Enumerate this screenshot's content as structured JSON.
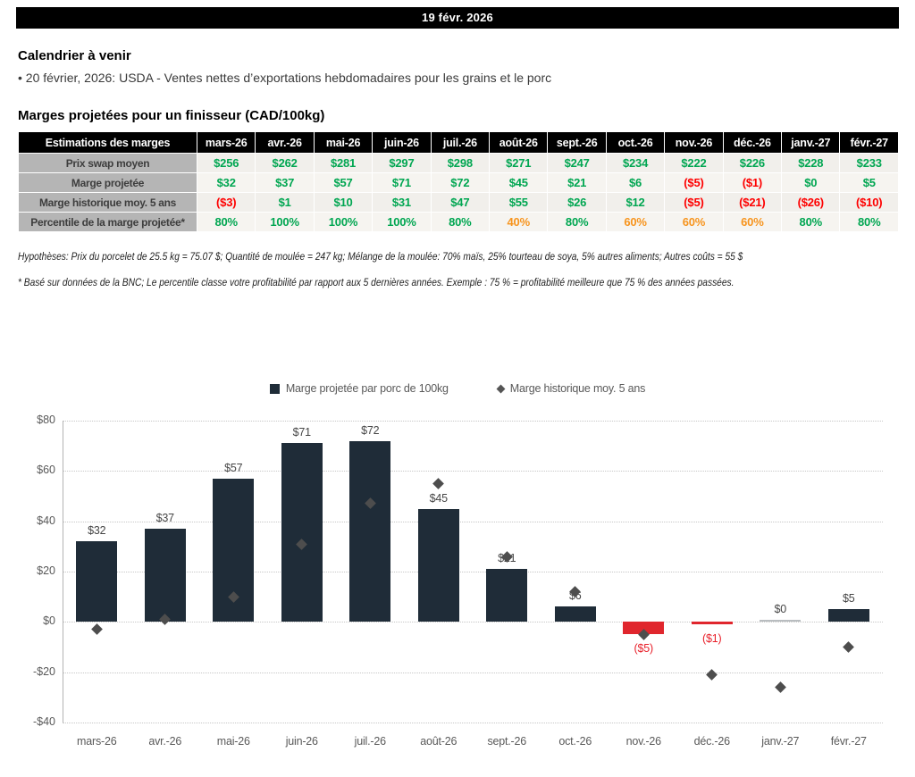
{
  "header": {
    "date": "19 févr. 2026"
  },
  "calendar": {
    "title": "Calendrier à venir",
    "items": [
      "• 20 février, 2026: USDA - Ventes nettes d’exportations hebdomadaires pour les grains et le porc"
    ]
  },
  "margins_section": {
    "title": "Marges projetées pour un finisseur (CAD/100kg)"
  },
  "table": {
    "header": [
      "Estimations des marges",
      "mars-26",
      "avr.-26",
      "mai-26",
      "juin-26",
      "juil.-26",
      "août-26",
      "sept.-26",
      "oct.-26",
      "nov.-26",
      "déc.-26",
      "janv.-27",
      "févr.-27"
    ],
    "rows": [
      {
        "label": "Prix swap moyen",
        "values": [
          "$256",
          "$262",
          "$281",
          "$297",
          "$298",
          "$271",
          "$247",
          "$234",
          "$222",
          "$226",
          "$228",
          "$233"
        ],
        "colors": [
          "g",
          "g",
          "g",
          "g",
          "g",
          "g",
          "g",
          "g",
          "g",
          "g",
          "g",
          "g"
        ]
      },
      {
        "label": "Marge projetée",
        "values": [
          "$32",
          "$37",
          "$57",
          "$71",
          "$72",
          "$45",
          "$21",
          "$6",
          "($5)",
          "($1)",
          "$0",
          "$5"
        ],
        "colors": [
          "g",
          "g",
          "g",
          "g",
          "g",
          "g",
          "g",
          "g",
          "r",
          "r",
          "g",
          "g"
        ]
      },
      {
        "label": "Marge historique moy. 5 ans",
        "values": [
          "($3)",
          "$1",
          "$10",
          "$31",
          "$47",
          "$55",
          "$26",
          "$12",
          "($5)",
          "($21)",
          "($26)",
          "($10)"
        ],
        "colors": [
          "r",
          "g",
          "g",
          "g",
          "g",
          "g",
          "g",
          "g",
          "r",
          "r",
          "r",
          "r"
        ]
      },
      {
        "label": "Percentile de la marge projetée*",
        "values": [
          "80%",
          "100%",
          "100%",
          "100%",
          "80%",
          "40%",
          "80%",
          "60%",
          "60%",
          "60%",
          "80%",
          "80%"
        ],
        "colors": [
          "g",
          "g",
          "g",
          "g",
          "g",
          "o",
          "g",
          "o",
          "o",
          "o",
          "g",
          "g"
        ]
      }
    ]
  },
  "footnotes": [
    "Hypothèses: Prix du porcelet de 25.5 kg = 75.07 $; Quantité de moulée = 247 kg; Mélange de la moulée: 70% maïs, 25% tourteau de soya, 5% autres aliments; Autres coûts = 55 $",
    "* Basé sur données de la BNC; Le percentile classe votre profitabilité par rapport aux 5 dernières années. Exemple : 75 % = profitabilité meilleure que 75 % des années passées."
  ],
  "chart_data": {
    "type": "bar",
    "categories": [
      "mars-26",
      "avr.-26",
      "mai-26",
      "juin-26",
      "juil.-26",
      "août-26",
      "sept.-26",
      "oct.-26",
      "nov.-26",
      "déc.-26",
      "janv.-27",
      "févr.-27"
    ],
    "series": [
      {
        "name": "Marge projetée par porc de 100kg",
        "type": "bar",
        "values": [
          32,
          37,
          57,
          71,
          72,
          45,
          21,
          6,
          -5,
          -1,
          0,
          5
        ],
        "labels": [
          "$32",
          "$37",
          "$57",
          "$71",
          "$72",
          "$45",
          "$21",
          "$6",
          "($5)",
          "($1)",
          "$0",
          "$5"
        ]
      },
      {
        "name": "Marge historique moy. 5 ans",
        "type": "scatter-diamond",
        "values": [
          -3,
          1,
          10,
          31,
          47,
          55,
          26,
          12,
          -5,
          -21,
          -26,
          -10
        ]
      }
    ],
    "title": "",
    "xlabel": "",
    "ylabel": "",
    "ylim": [
      -40,
      80
    ],
    "ytick_step": 20,
    "ytick_labels": [
      "$80",
      "$60",
      "$40",
      "$20",
      "$0",
      "-$20",
      "-$40"
    ],
    "grid": "dotted-horizontal",
    "legend_position": "top"
  },
  "colors": {
    "bar_positive": "#1f2c38",
    "bar_negative": "#e0262d",
    "bar_zero": "#b9bdc0",
    "diamond": "#4d4d4d",
    "green": "#00a651",
    "red": "#fe0000",
    "orange": "#f7941d",
    "neg_label_red": "#e8202a",
    "header_bg": "#000000",
    "row_label_bg": "#b5b5b5"
  }
}
